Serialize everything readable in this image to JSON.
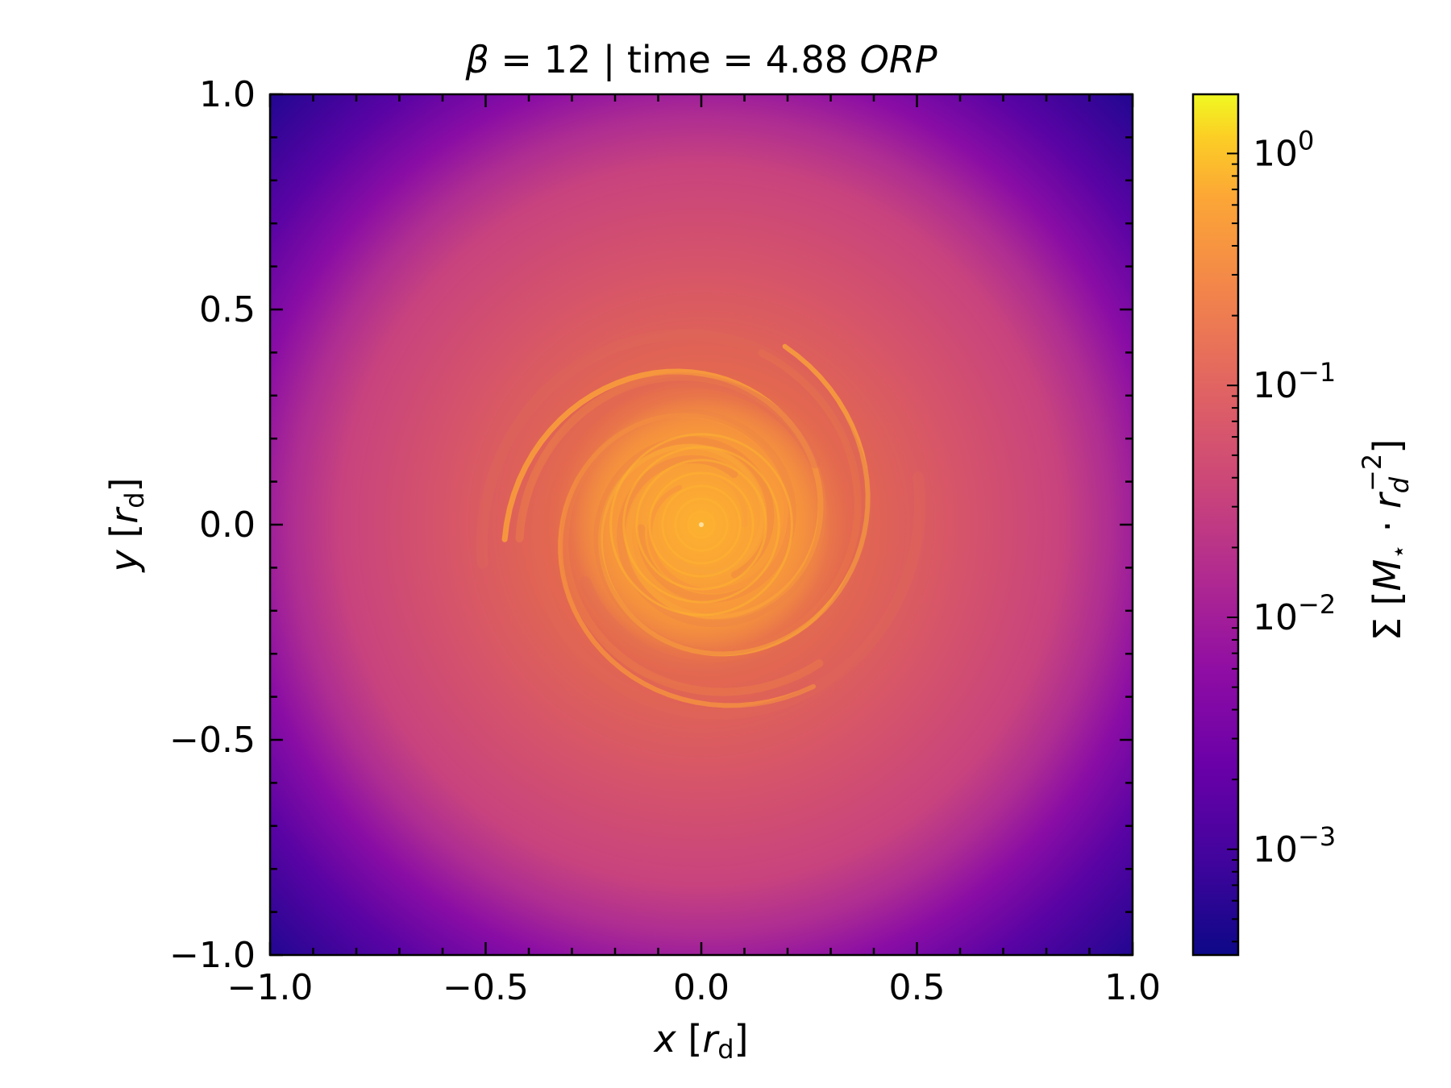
{
  "title": {
    "beta_symbol": "β",
    "text": " = 12 | time = 4.88 ",
    "unit": "ORP"
  },
  "axes": {
    "x_label": {
      "var": "x",
      "bracket_open": " [",
      "r": "r",
      "sub": "d",
      "bracket_close": "]"
    },
    "y_label": {
      "var": "y",
      "bracket_open": " [",
      "r": "r",
      "sub": "d",
      "bracket_close": "]"
    }
  },
  "colorbar": {
    "label": "Σ [M⋆ · r_d⁻²]",
    "label_parts": {
      "sigma": "Σ",
      "open": " [",
      "m": "M",
      "star": "⋆",
      "dot": " · ",
      "r": "r",
      "sub": "d",
      "sup": "−2",
      "close": "]"
    },
    "scale": "log",
    "range": [
      0.00035,
      1.8
    ],
    "colormap": "plasma",
    "ticks": [
      {
        "value": 1,
        "base": "10",
        "exp": "0"
      },
      {
        "value": 0.1,
        "base": "10",
        "exp": "−1"
      },
      {
        "value": 0.01,
        "base": "10",
        "exp": "−2"
      },
      {
        "value": 0.001,
        "base": "10",
        "exp": "−3"
      }
    ]
  },
  "chart_data": {
    "type": "heatmap",
    "title": "β = 12 | time = 4.88 ORP",
    "xlabel": "x [r_d]",
    "ylabel": "y [r_d]",
    "xlim": [
      -1.0,
      1.0
    ],
    "ylim": [
      -1.0,
      1.0
    ],
    "x_ticks": [
      "−1.0",
      "−0.5",
      "0.0",
      "0.5",
      "1.0"
    ],
    "y_ticks": [
      "−1.0",
      "−0.5",
      "0.0",
      "0.5",
      "1.0"
    ],
    "x_tick_values": [
      -1.0,
      -0.5,
      0.0,
      0.5,
      1.0
    ],
    "y_tick_values": [
      -1.0,
      -0.5,
      0.0,
      0.5,
      1.0
    ],
    "colorbar_label": "Σ [M⋆ · r_d⁻²]",
    "color_scale": "log",
    "color_range": [
      0.00035,
      1.8
    ],
    "colormap": "plasma",
    "description_of_field": "gas surface density of a disk with spiral arms; densest (~0.3–1) in a ring-filled core of radius ~0.25 r_d around the origin, ~0.02–0.05 in the outer disk, falling to ~0.0005 at the square corners",
    "grid": false
  }
}
